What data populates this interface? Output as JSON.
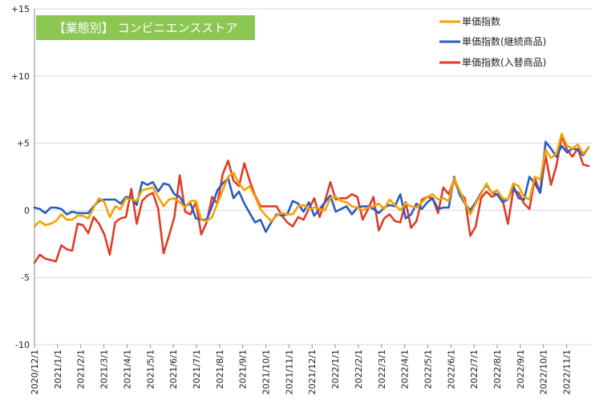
{
  "chart_data": {
    "type": "line",
    "title": "【業態別】 コンビニエンスストア",
    "xlabel": "",
    "ylabel": "",
    "ylim": [
      -10,
      15
    ],
    "yticks": [
      15,
      10,
      5,
      0,
      -5,
      -10
    ],
    "ytick_labels": [
      "+15",
      "+10",
      "+5",
      "0",
      "-5",
      "-10"
    ],
    "x_tick_labels": [
      "2020/12/1",
      "2021/1/1",
      "2021/2/1",
      "2021/3/1",
      "2021/4/1",
      "2021/5/1",
      "2021/6/1",
      "2021/7/1",
      "2021/8/1",
      "2021/9/1",
      "2021/10/1",
      "2021/11/1",
      "2021/12/1",
      "2022/1/1",
      "2022/2/1",
      "2022/3/1",
      "2022/4/1",
      "2022/5/1",
      "2022/6/1",
      "2022/7/1",
      "2022/8/1",
      "2022/9/1",
      "2022/10/1",
      "2022/11/1"
    ],
    "x_points_per_tick": 4.3,
    "grid": "horizontal",
    "legend": "top-right",
    "series": [
      {
        "name": "単価指数",
        "color": "#f5a200",
        "values": [
          -1.2,
          -0.8,
          -1.1,
          -1.0,
          -0.8,
          -0.3,
          -0.7,
          -0.7,
          -0.4,
          -0.4,
          -0.6,
          0.2,
          0.9,
          0.6,
          -0.5,
          0.3,
          0.1,
          0.9,
          0.8,
          0.7,
          1.5,
          1.6,
          1.7,
          1.0,
          0.3,
          0.8,
          0.9,
          0.6,
          0.2,
          0.7,
          0.7,
          -0.7,
          -0.8,
          -0.5,
          0.5,
          1.5,
          2.5,
          2.8,
          2.0,
          1.5,
          1.8,
          1.0,
          0.1,
          -0.4,
          -0.8,
          -0.4,
          -0.2,
          -0.3,
          -0.3,
          0.3,
          0.4,
          0.1,
          0.2,
          0.1,
          0.0,
          0.9,
          1.0,
          0.7,
          0.6,
          0.3,
          0.2,
          0.0,
          0.2,
          0.3,
          0.5,
          0.1,
          0.8,
          0.4,
          0.0,
          0.5,
          0.3,
          0.2,
          0.6,
          1.0,
          1.2,
          0.8,
          0.9,
          0.7,
          2.4,
          1.5,
          0.6,
          -0.3,
          0.5,
          1.2,
          2.0,
          1.3,
          1.5,
          0.9,
          0.8,
          2.0,
          1.8,
          1.0,
          0.8,
          2.5,
          2.3,
          4.5,
          3.9,
          4.2,
          5.7,
          4.8,
          4.6,
          4.9,
          4.2,
          4.7
        ]
      },
      {
        "name": "単価指数(継続商品)",
        "color": "#2a5cbf",
        "values": [
          0.2,
          0.1,
          -0.2,
          0.2,
          0.2,
          0.1,
          -0.3,
          -0.1,
          -0.2,
          -0.2,
          -0.2,
          0.3,
          0.7,
          0.8,
          0.8,
          0.8,
          0.5,
          1.0,
          0.9,
          0.4,
          2.1,
          1.9,
          2.1,
          1.4,
          2.0,
          1.9,
          1.2,
          1.0,
          0.3,
          0.5,
          -0.6,
          -0.7,
          -0.7,
          0.3,
          1.5,
          2.0,
          2.4,
          0.9,
          1.4,
          0.5,
          -0.2,
          -0.9,
          -0.7,
          -1.6,
          -0.9,
          -0.3,
          -0.4,
          -0.3,
          0.7,
          0.5,
          -0.1,
          0.6,
          -0.4,
          0.1,
          0.6,
          1.1,
          -0.1,
          0.1,
          0.3,
          -0.3,
          0.2,
          0.3,
          0.3,
          0.1,
          -0.2,
          0.2,
          0.4,
          0.3,
          1.2,
          -0.6,
          -0.3,
          0.5,
          0.1,
          0.6,
          0.9,
          0.1,
          0.2,
          0.2,
          2.5,
          1.2,
          0.5,
          0.0,
          0.6,
          1.3,
          1.9,
          1.3,
          1.2,
          0.6,
          0.8,
          1.8,
          0.9,
          0.8,
          2.5,
          2.0,
          1.3,
          5.1,
          4.6,
          4.0,
          4.8,
          4.3,
          4.6,
          4.5,
          4.1,
          4.7
        ]
      },
      {
        "name": "単価指数(入替商品)",
        "color": "#e03c28",
        "values": [
          -3.9,
          -3.3,
          -3.6,
          -3.7,
          -3.8,
          -2.6,
          -2.9,
          -3.0,
          -1.0,
          -1.1,
          -1.7,
          -0.5,
          -1.0,
          -1.8,
          -3.3,
          -0.9,
          -0.6,
          -0.5,
          1.6,
          -1.0,
          0.7,
          1.1,
          1.3,
          0.1,
          -3.2,
          -1.9,
          -0.5,
          2.6,
          -0.1,
          -0.3,
          0.6,
          -1.8,
          -0.9,
          1.0,
          0.5,
          2.7,
          3.7,
          2.2,
          1.8,
          3.5,
          2.2,
          1.1,
          0.3,
          0.3,
          0.3,
          0.3,
          -0.4,
          -0.9,
          -1.2,
          -0.5,
          -0.7,
          0.1,
          0.9,
          -0.5,
          0.7,
          2.1,
          0.8,
          0.9,
          0.9,
          1.2,
          1.0,
          -0.7,
          0.1,
          1.0,
          -1.5,
          -0.6,
          -0.3,
          -0.8,
          -0.9,
          0.6,
          -1.3,
          -0.8,
          0.8,
          1.0,
          0.9,
          -0.2,
          1.7,
          1.2,
          2.3,
          1.3,
          0.9,
          -1.9,
          -1.2,
          0.9,
          1.4,
          1.0,
          1.2,
          0.8,
          -1.0,
          1.5,
          1.3,
          0.5,
          0.1,
          2.4,
          1.3,
          4.1,
          1.9,
          3.3,
          5.5,
          4.5,
          4.0,
          4.6,
          3.4,
          3.3
        ]
      }
    ]
  }
}
